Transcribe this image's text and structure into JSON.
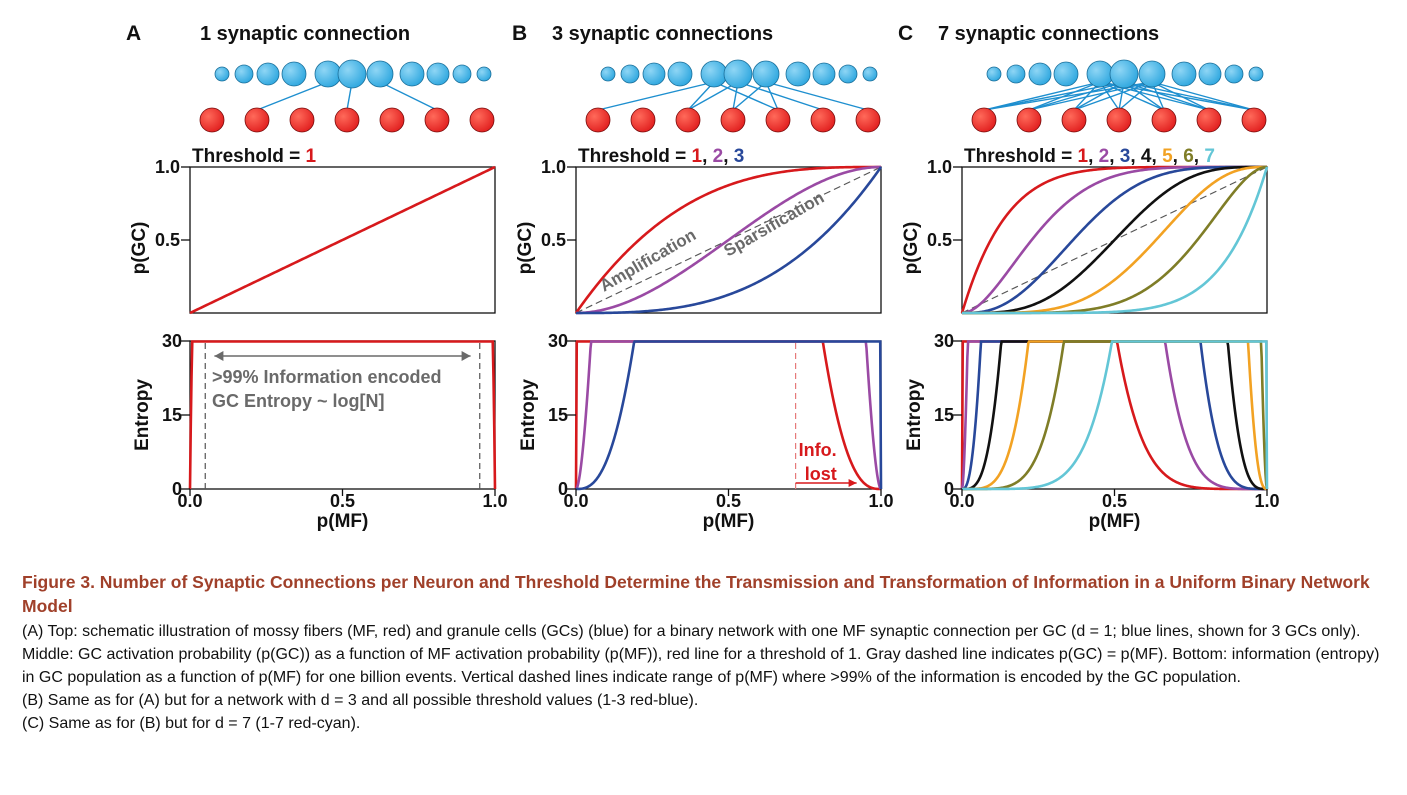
{
  "colors": {
    "red": "#d7191c",
    "purple": "#9a4aa4",
    "blue": "#28489a",
    "black": "#111111",
    "orange": "#f2a223",
    "olive": "#7f7d27",
    "cyan": "#63c6d6",
    "mf_cell": "#e11f1f",
    "gc_cell": "#2ea7df",
    "gray_text": "#6a6a6a",
    "caption_title": "#a0402a"
  },
  "panels": [
    {
      "letter": "A",
      "title": "1  synaptic connection",
      "d": 1,
      "threshold_prefix": "Threshold = ",
      "threshold_values": [
        "1"
      ],
      "threshold_separators": [],
      "top_curve_labels": [],
      "annotations": [
        ">99% Information encoded",
        "GC Entropy ~ log[N]"
      ]
    },
    {
      "letter": "B",
      "title": "3 synaptic connections",
      "d": 3,
      "threshold_prefix": "Threshold = ",
      "threshold_values": [
        "1",
        "2",
        "3"
      ],
      "threshold_separators": [
        ", ",
        ", "
      ],
      "top_curve_labels": [
        "Amplification",
        "Sparsification"
      ],
      "annotations": [
        "Info.",
        "lost"
      ]
    },
    {
      "letter": "C",
      "title": "7 synaptic connections",
      "d": 7,
      "threshold_prefix": "Threshold = ",
      "threshold_values": [
        "1",
        "2",
        "3",
        "4",
        "5",
        "6",
        "7"
      ],
      "threshold_separators": [
        ", ",
        ", ",
        ", ",
        ", ",
        ", ",
        ", "
      ],
      "top_curve_labels": [],
      "annotations": []
    }
  ],
  "axes": {
    "top_ylabel": "p(GC)",
    "top_yticks": [
      "0.5",
      "1.0"
    ],
    "bottom_ylabel": "Entropy",
    "bottom_yticks": [
      "0",
      "15",
      "30"
    ],
    "xlabel": "p(MF)",
    "xticks": [
      "0.0",
      "0.5",
      "1.0"
    ]
  },
  "chart_data": [
    {
      "panel": "A",
      "type": "line",
      "xlabel": "p(MF)",
      "ylabel": "p(GC)",
      "xlim": [
        0,
        1
      ],
      "ylim": [
        0,
        1
      ],
      "series": [
        {
          "threshold": 1,
          "d": 1,
          "color": "red"
        }
      ],
      "identity_line": true
    },
    {
      "panel": "A",
      "type": "line",
      "xlabel": "p(MF)",
      "ylabel": "Entropy",
      "xlim": [
        0,
        1
      ],
      "ylim": [
        0,
        30
      ],
      "series": [
        {
          "threshold": 1,
          "d": 1,
          "color": "red"
        }
      ],
      "range_markers": [
        0.05,
        0.95
      ]
    },
    {
      "panel": "B",
      "type": "line",
      "xlabel": "p(MF)",
      "ylabel": "p(GC)",
      "xlim": [
        0,
        1
      ],
      "ylim": [
        0,
        1
      ],
      "series": [
        {
          "threshold": 1,
          "d": 3,
          "color": "red"
        },
        {
          "threshold": 2,
          "d": 3,
          "color": "purple"
        },
        {
          "threshold": 3,
          "d": 3,
          "color": "blue"
        }
      ],
      "identity_line": true
    },
    {
      "panel": "B",
      "type": "line",
      "xlabel": "p(MF)",
      "ylabel": "Entropy",
      "xlim": [
        0,
        1
      ],
      "ylim": [
        0,
        30
      ],
      "series": [
        {
          "threshold": 1,
          "d": 3,
          "color": "red"
        },
        {
          "threshold": 2,
          "d": 3,
          "color": "purple"
        },
        {
          "threshold": 3,
          "d": 3,
          "color": "blue"
        }
      ],
      "range_markers": [
        0.72
      ]
    },
    {
      "panel": "C",
      "type": "line",
      "xlabel": "p(MF)",
      "ylabel": "p(GC)",
      "xlim": [
        0,
        1
      ],
      "ylim": [
        0,
        1
      ],
      "series": [
        {
          "threshold": 1,
          "d": 7,
          "color": "red"
        },
        {
          "threshold": 2,
          "d": 7,
          "color": "purple"
        },
        {
          "threshold": 3,
          "d": 7,
          "color": "blue"
        },
        {
          "threshold": 4,
          "d": 7,
          "color": "black"
        },
        {
          "threshold": 5,
          "d": 7,
          "color": "orange"
        },
        {
          "threshold": 6,
          "d": 7,
          "color": "olive"
        },
        {
          "threshold": 7,
          "d": 7,
          "color": "cyan"
        }
      ],
      "identity_line": true
    },
    {
      "panel": "C",
      "type": "line",
      "xlabel": "p(MF)",
      "ylabel": "Entropy",
      "xlim": [
        0,
        1
      ],
      "ylim": [
        0,
        30
      ],
      "series": [
        {
          "threshold": 1,
          "d": 7,
          "color": "red"
        },
        {
          "threshold": 2,
          "d": 7,
          "color": "purple"
        },
        {
          "threshold": 3,
          "d": 7,
          "color": "blue"
        },
        {
          "threshold": 4,
          "d": 7,
          "color": "black"
        },
        {
          "threshold": 5,
          "d": 7,
          "color": "orange"
        },
        {
          "threshold": 6,
          "d": 7,
          "color": "olive"
        },
        {
          "threshold": 7,
          "d": 7,
          "color": "cyan"
        }
      ],
      "range_markers": []
    }
  ],
  "caption": {
    "title": "Figure 3.  Number of Synaptic Connections per Neuron and Threshold Determine the Transmission and Transformation of Information in a Uniform Binary Network Model",
    "lines": [
      "(A) Top: schematic illustration of mossy fibers (MF, red) and granule cells (GCs) (blue) for a binary network with one MF synaptic connection per GC (d = 1; blue lines, shown for 3 GCs only). Middle: GC activation probability (p(GC)) as a function of MF activation probability (p(MF)), red line for a threshold of 1. Gray dashed line indicates p(GC) = p(MF). Bottom: information (entropy) in GC population as a function of p(MF) for one billion events. Vertical dashed lines indicate range of p(MF) where >99% of the information is encoded by the GC population.",
      "(B) Same as for (A) but for a network with d = 3 and all possible threshold values (1-3 red-blue).",
      "(C) Same as for (B) but for d = 7 (1-7 red-cyan)."
    ]
  }
}
